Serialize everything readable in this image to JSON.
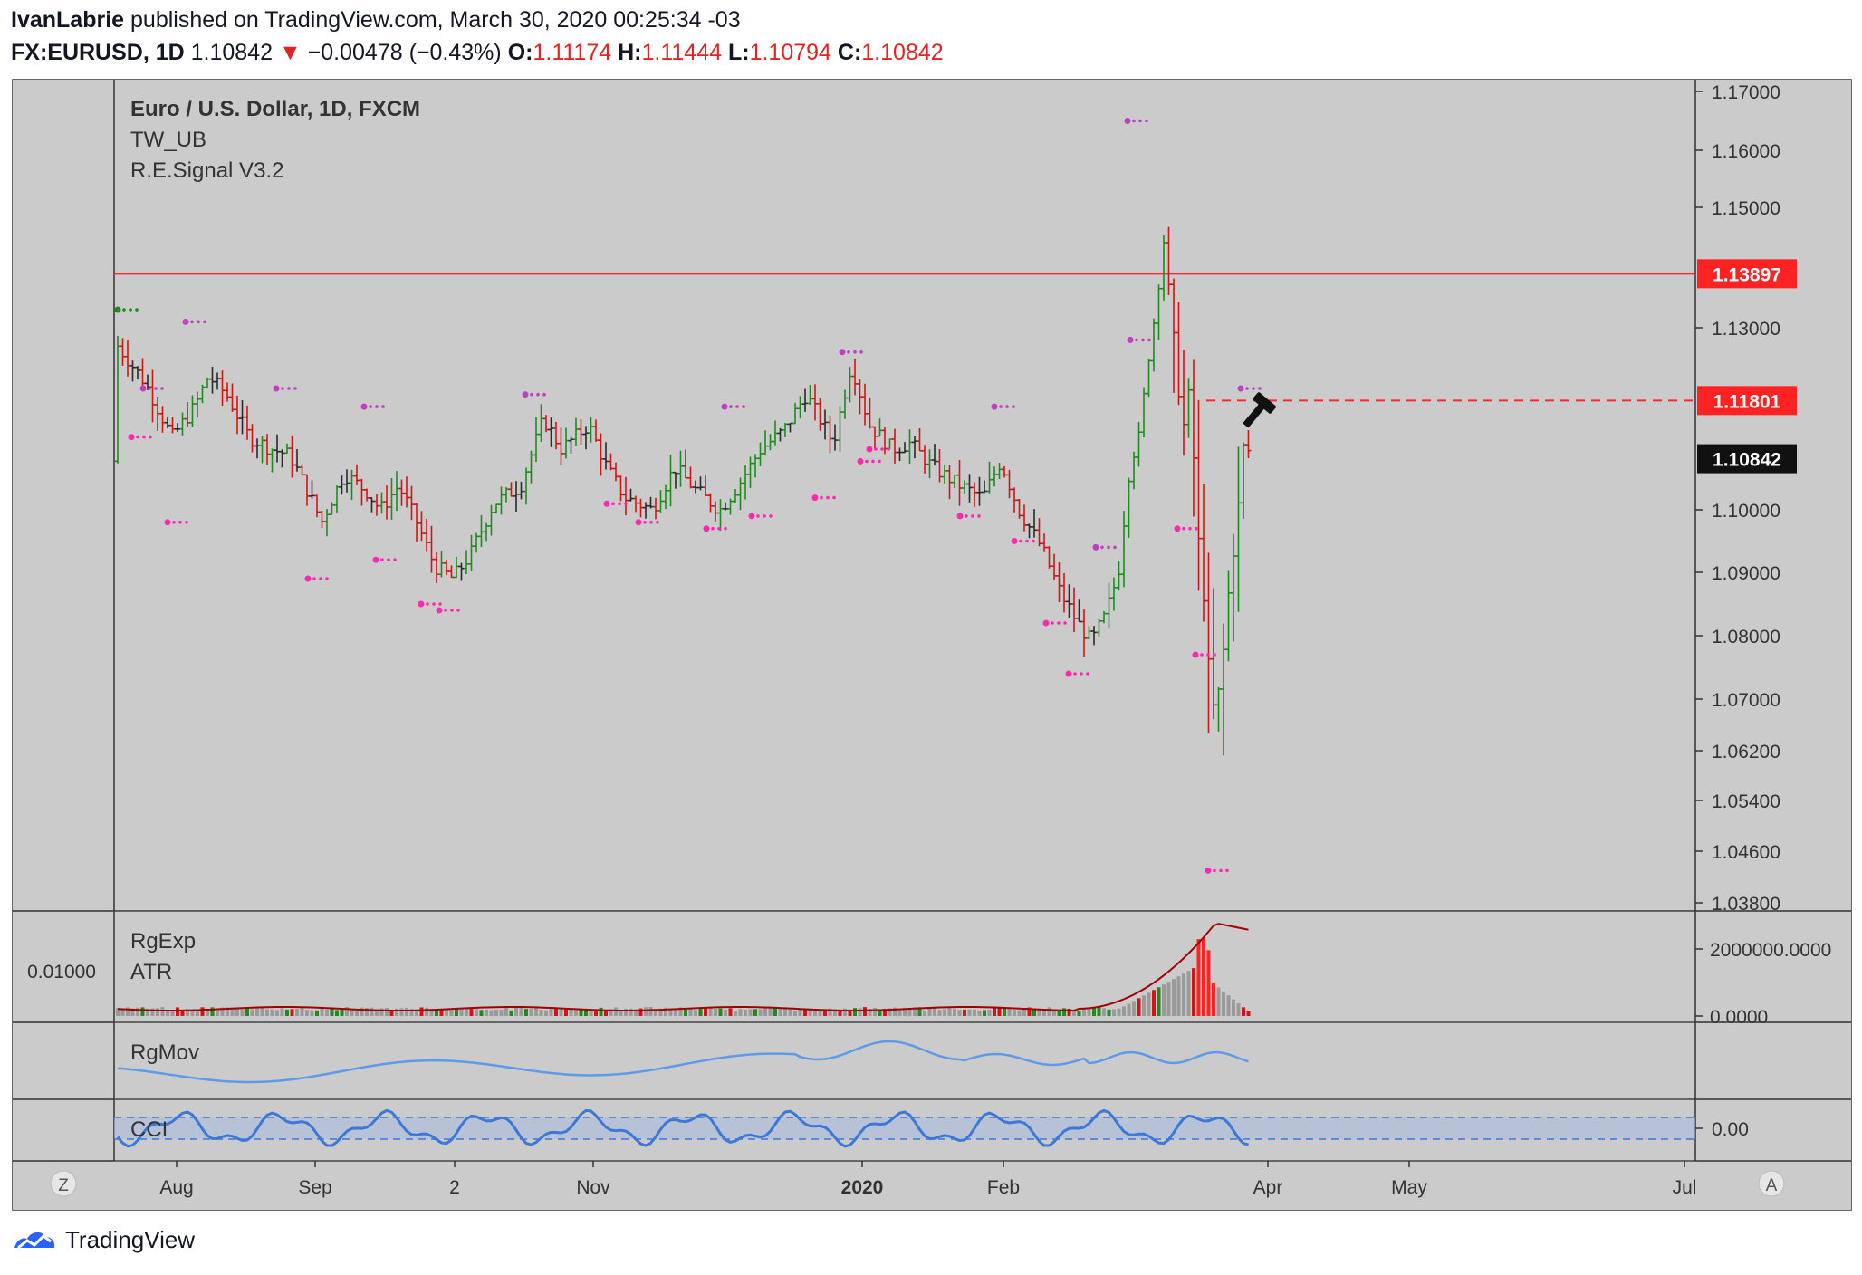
{
  "header": {
    "publisher": "IvanLabrie",
    "published_text": "published on TradingView.com, March 30, 2020 00:25:34 -03",
    "symbol": "FX:EURUSD, 1D",
    "last": "1.10842",
    "change_arrow": "▼",
    "change": "−0.00478 (−0.43%)",
    "open_label": "O:",
    "open": "1.11174",
    "high_label": "H:",
    "high": "1.11444",
    "low_label": "L:",
    "low": "1.10794",
    "close_label": "C:",
    "close": "1.10842"
  },
  "colors": {
    "pane_bg": "#cbcbcb",
    "up": "#1f8a1f",
    "down": "#d01515",
    "neutral": "#2a2a2a",
    "resistance": "#ff2a2a",
    "rgmov": "#5d9bea",
    "cci": "#3c78d8",
    "atr_line": "#a00000"
  },
  "legend": {
    "title": "Euro / U.S. Dollar, 1D, FXCM",
    "indicator1": "TW_UB",
    "indicator2": "R.E.Signal V3.2"
  },
  "price_axis": {
    "ticks": [
      "1.17000",
      "1.16000",
      "1.15000",
      "1.13000",
      "1.10000",
      "1.09000",
      "1.08000",
      "1.07000",
      "1.06200",
      "1.05400",
      "1.04600",
      "1.03800"
    ],
    "tick_values": [
      1.17,
      1.16,
      1.15,
      1.13,
      1.1,
      1.09,
      1.08,
      1.07,
      1.062,
      1.054,
      1.046,
      1.038
    ]
  },
  "price_labels": [
    {
      "value": "1.13897",
      "style": "red"
    },
    {
      "value": "1.11801",
      "style": "red"
    },
    {
      "value": "1.10842",
      "style": "black"
    }
  ],
  "lower_panes": {
    "atr": {
      "label1": "RgExp",
      "label2": "ATR",
      "left_value": "0.01000",
      "ticks": [
        "2000000.0000",
        "0.0000"
      ]
    },
    "rgmov": {
      "label": "RgMov"
    },
    "cci": {
      "label": "CCI",
      "ticks": [
        "0.00"
      ]
    }
  },
  "time_axis": {
    "labels": [
      "Aug",
      "Sep",
      "2",
      "Nov",
      "2020",
      "Feb",
      "Apr",
      "May",
      "Jul"
    ],
    "bold": [
      false,
      false,
      false,
      false,
      true,
      false,
      false,
      false,
      false
    ],
    "z_button": "Z",
    "a_button": "A"
  },
  "footer": {
    "brand": "TradingView"
  },
  "chart_data": {
    "type": "bar",
    "title": "Euro / U.S. Dollar, 1D, FXCM",
    "x_range": [
      "2019-07-16",
      "2020-03-30"
    ],
    "ylim": [
      1.038,
      1.175
    ],
    "grid": false,
    "horizontal_lines": [
      {
        "value": 1.13897,
        "style": "solid"
      },
      {
        "value": 1.11801,
        "style": "dashed"
      }
    ],
    "ohlc_last": {
      "open": 1.11174,
      "high": 1.11444,
      "low": 1.10794,
      "close": 1.10842
    }
  }
}
